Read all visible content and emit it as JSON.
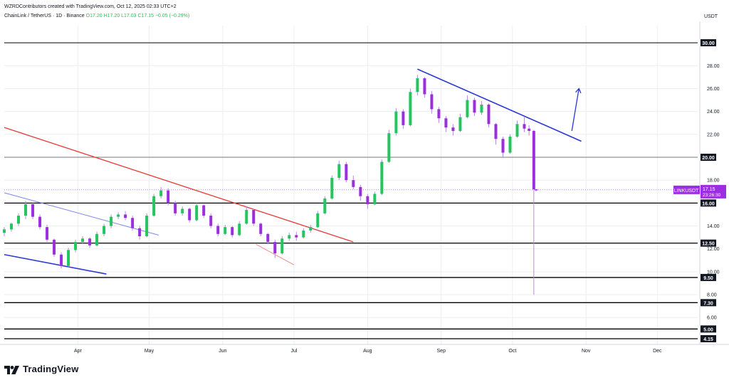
{
  "header": {
    "credit": "WZRDContributors created with TradingView.com, Oct 12, 2025 02:33 UTC+2",
    "symbol": "ChainLink / TetherUS · 1D · Binance",
    "ohlc": "O17.20 H17.20 L17.03 C17.15 −0.05 (−0.29%)"
  },
  "footer": {
    "brand": "TradingView"
  },
  "colors": {
    "up": "#22c55e",
    "down": "#9b2fe0",
    "wick": "#b78ae0",
    "red_trend": "#e53935",
    "blue_trend": "#2b37d6",
    "level": "#000000",
    "grid": "#eceef2"
  },
  "chart_data": {
    "type": "candlestick",
    "symbol": "LINKUSDT",
    "price_axis_unit": "USDT",
    "ylim": [
      4,
      31
    ],
    "y_ticks": [
      "6.00",
      "8.00",
      "10.00",
      "12.00",
      "14.00",
      "18.00",
      "22.00",
      "24.00",
      "26.00",
      "28.00"
    ],
    "x_ticks": [
      "Apr",
      "May",
      "Jun",
      "Jul",
      "Aug",
      "Sep",
      "Oct",
      "Nov",
      "Dec"
    ],
    "last_price": "17.15",
    "countdown": "23:26:30",
    "horizontal_levels": [
      30.0,
      20.0,
      16.0,
      12.5,
      9.5,
      7.3,
      5.0,
      4.15
    ],
    "level_labels": [
      "30.00",
      "20.00",
      "16.00",
      "12.50",
      "9.50",
      "7.30",
      "5.00",
      "4.15"
    ],
    "trendlines": [
      {
        "color": "red",
        "from": [
          "2025-03-01",
          22.6
        ],
        "to": [
          "2025-07-26",
          12.6
        ]
      },
      {
        "color": "blue",
        "from": [
          "2025-08-22",
          27.7
        ],
        "to": [
          "2025-10-30",
          21.4
        ]
      },
      {
        "color": "blue",
        "from": [
          "2025-03-01",
          11.5
        ],
        "to": [
          "2025-04-13",
          9.8
        ]
      },
      {
        "color": "blue-light",
        "from": [
          "2025-03-01",
          16.9
        ],
        "to": [
          "2025-05-05",
          13.2
        ]
      },
      {
        "color": "red-light",
        "from": [
          "2025-06-15",
          12.4
        ],
        "to": [
          "2025-07-01",
          10.6
        ]
      },
      {
        "color": "blue-arrow",
        "from": [
          "2025-10-26",
          22.3
        ],
        "to": [
          "2025-10-29",
          26.0
        ]
      }
    ],
    "ohlc": [
      [
        "2025-03-01",
        13.4,
        13.9,
        13.1,
        13.7
      ],
      [
        "2025-03-04",
        13.7,
        14.3,
        13.5,
        14.2
      ],
      [
        "2025-03-07",
        14.2,
        15.1,
        14.0,
        14.9
      ],
      [
        "2025-03-10",
        14.9,
        16.2,
        14.6,
        15.9
      ],
      [
        "2025-03-13",
        15.9,
        16.0,
        14.6,
        14.8
      ],
      [
        "2025-03-16",
        14.8,
        15.0,
        13.7,
        13.9
      ],
      [
        "2025-03-19",
        13.9,
        14.1,
        12.6,
        12.8
      ],
      [
        "2025-03-22",
        12.8,
        12.9,
        11.3,
        11.5
      ],
      [
        "2025-03-25",
        11.5,
        11.7,
        10.3,
        10.5
      ],
      [
        "2025-03-28",
        10.5,
        12.1,
        10.4,
        11.9
      ],
      [
        "2025-03-31",
        11.9,
        12.8,
        11.7,
        12.6
      ],
      [
        "2025-04-03",
        12.6,
        13.1,
        12.4,
        12.9
      ],
      [
        "2025-04-06",
        12.9,
        13.0,
        12.1,
        12.3
      ],
      [
        "2025-04-09",
        12.3,
        13.5,
        12.2,
        13.3
      ],
      [
        "2025-04-12",
        13.3,
        14.2,
        13.1,
        14.0
      ],
      [
        "2025-04-15",
        14.0,
        15.0,
        13.8,
        14.8
      ],
      [
        "2025-04-18",
        14.8,
        15.2,
        14.6,
        15.0
      ],
      [
        "2025-04-21",
        15.0,
        15.3,
        14.5,
        14.7
      ],
      [
        "2025-04-24",
        14.7,
        14.9,
        13.6,
        13.8
      ],
      [
        "2025-04-27",
        13.8,
        14.0,
        12.8,
        13.1
      ],
      [
        "2025-04-30",
        13.1,
        15.1,
        13.0,
        14.9
      ],
      [
        "2025-05-03",
        14.9,
        16.8,
        14.8,
        16.6
      ],
      [
        "2025-05-06",
        16.6,
        17.4,
        16.4,
        17.1
      ],
      [
        "2025-05-09",
        17.1,
        17.3,
        15.8,
        16.0
      ],
      [
        "2025-05-12",
        16.0,
        16.2,
        14.9,
        15.1
      ],
      [
        "2025-05-15",
        15.1,
        15.7,
        14.9,
        15.5
      ],
      [
        "2025-05-18",
        15.5,
        15.6,
        14.3,
        14.5
      ],
      [
        "2025-05-21",
        14.5,
        16.0,
        14.4,
        15.8
      ],
      [
        "2025-05-24",
        15.8,
        15.9,
        14.7,
        14.9
      ],
      [
        "2025-05-27",
        14.9,
        15.1,
        13.8,
        14.0
      ],
      [
        "2025-05-30",
        14.0,
        14.2,
        13.1,
        13.3
      ],
      [
        "2025-06-02",
        13.3,
        14.1,
        13.2,
        13.9
      ],
      [
        "2025-06-05",
        13.9,
        14.0,
        13.0,
        13.2
      ],
      [
        "2025-06-08",
        13.2,
        14.4,
        13.1,
        14.2
      ],
      [
        "2025-06-11",
        14.2,
        15.7,
        14.1,
        15.4
      ],
      [
        "2025-06-14",
        15.4,
        15.5,
        14.0,
        14.2
      ],
      [
        "2025-06-17",
        14.2,
        14.3,
        13.1,
        13.3
      ],
      [
        "2025-06-20",
        13.3,
        13.4,
        12.4,
        12.6
      ],
      [
        "2025-06-23",
        12.6,
        12.8,
        11.2,
        11.6
      ],
      [
        "2025-06-26",
        11.6,
        13.1,
        11.5,
        12.9
      ],
      [
        "2025-06-29",
        12.9,
        13.4,
        12.7,
        13.2
      ],
      [
        "2025-07-02",
        13.2,
        13.5,
        12.7,
        13.0
      ],
      [
        "2025-07-05",
        13.0,
        13.8,
        12.9,
        13.6
      ],
      [
        "2025-07-08",
        13.6,
        14.1,
        13.4,
        13.9
      ],
      [
        "2025-07-11",
        13.9,
        15.3,
        13.8,
        15.1
      ],
      [
        "2025-07-14",
        15.1,
        16.6,
        15.0,
        16.4
      ],
      [
        "2025-07-17",
        16.4,
        18.4,
        16.3,
        18.2
      ],
      [
        "2025-07-20",
        18.2,
        19.7,
        18.0,
        19.4
      ],
      [
        "2025-07-23",
        19.4,
        19.6,
        17.8,
        18.0
      ],
      [
        "2025-07-26",
        18.0,
        18.4,
        17.2,
        17.4
      ],
      [
        "2025-07-29",
        17.4,
        17.6,
        16.2,
        16.6
      ],
      [
        "2025-08-01",
        16.6,
        16.8,
        15.5,
        15.9
      ],
      [
        "2025-08-04",
        15.9,
        17.0,
        15.8,
        16.8
      ],
      [
        "2025-08-07",
        16.8,
        19.8,
        16.7,
        19.6
      ],
      [
        "2025-08-10",
        19.6,
        22.4,
        19.5,
        22.1
      ],
      [
        "2025-08-13",
        22.1,
        24.3,
        21.9,
        24.0
      ],
      [
        "2025-08-16",
        24.0,
        24.2,
        22.5,
        22.8
      ],
      [
        "2025-08-19",
        22.8,
        26.0,
        22.7,
        25.7
      ],
      [
        "2025-08-22",
        25.7,
        27.2,
        25.4,
        26.9
      ],
      [
        "2025-08-25",
        26.9,
        27.0,
        25.2,
        25.5
      ],
      [
        "2025-08-28",
        25.5,
        25.8,
        23.8,
        24.2
      ],
      [
        "2025-08-31",
        24.2,
        24.4,
        23.0,
        23.4
      ],
      [
        "2025-09-03",
        23.4,
        23.6,
        22.2,
        22.6
      ],
      [
        "2025-09-06",
        22.6,
        22.9,
        21.9,
        22.3
      ],
      [
        "2025-09-09",
        22.3,
        23.8,
        22.2,
        23.5
      ],
      [
        "2025-09-12",
        23.5,
        25.4,
        23.4,
        25.0
      ],
      [
        "2025-09-15",
        25.0,
        25.2,
        23.6,
        23.9
      ],
      [
        "2025-09-18",
        23.9,
        24.9,
        23.7,
        24.6
      ],
      [
        "2025-09-21",
        24.6,
        24.7,
        22.6,
        22.9
      ],
      [
        "2025-09-24",
        22.9,
        23.0,
        21.1,
        21.6
      ],
      [
        "2025-09-27",
        21.6,
        21.8,
        20.0,
        20.4
      ],
      [
        "2025-09-30",
        20.4,
        22.0,
        20.3,
        21.8
      ],
      [
        "2025-10-03",
        21.8,
        23.2,
        21.7,
        22.9
      ],
      [
        "2025-10-06",
        22.9,
        23.5,
        22.2,
        22.5
      ],
      [
        "2025-10-08",
        22.5,
        22.8,
        21.9,
        22.3
      ],
      [
        "2025-10-10",
        22.3,
        22.4,
        8.0,
        17.2
      ],
      [
        "2025-10-11",
        17.2,
        17.2,
        17.03,
        17.15
      ]
    ]
  }
}
